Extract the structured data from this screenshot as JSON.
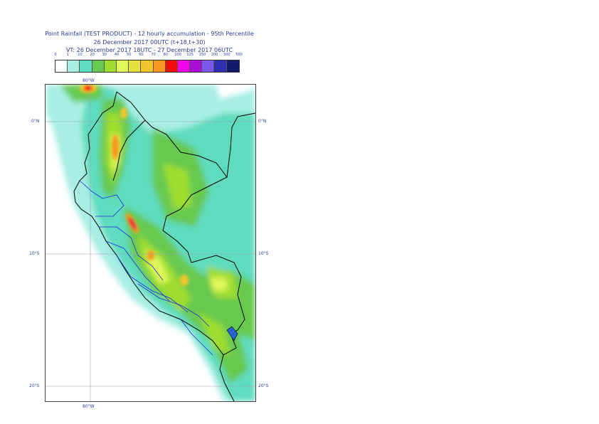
{
  "header": {
    "line1": "Point Rainfall (TEST PRODUCT) - 12 hourly accumulation - 95th Percentile",
    "line2": "26 December 2017 00UTC (t+18,t+30)",
    "line3": "VT: 26 December 2017 18UTC - 27 December 2017 06UTC"
  },
  "legend": {
    "ticks": [
      "0",
      "1",
      "10",
      "20",
      "30",
      "40",
      "50",
      "60",
      "70",
      "80",
      "100",
      "125",
      "150",
      "200",
      "300",
      "500"
    ],
    "colors": [
      "#ffffff",
      "#a8eee4",
      "#5edcbf",
      "#67c94f",
      "#9fdd2e",
      "#e0f75a",
      "#e6e13a",
      "#f2c62a",
      "#f79a1f",
      "#f30a0a",
      "#f004e8",
      "#a80ed6",
      "#7b56ea",
      "#2e2eb3",
      "#131a6a"
    ]
  },
  "map": {
    "lon_labels": {
      "top": "80°W",
      "bottom": "80°W"
    },
    "lat_labels": [
      "0°N",
      "10°S",
      "20°S"
    ]
  }
}
